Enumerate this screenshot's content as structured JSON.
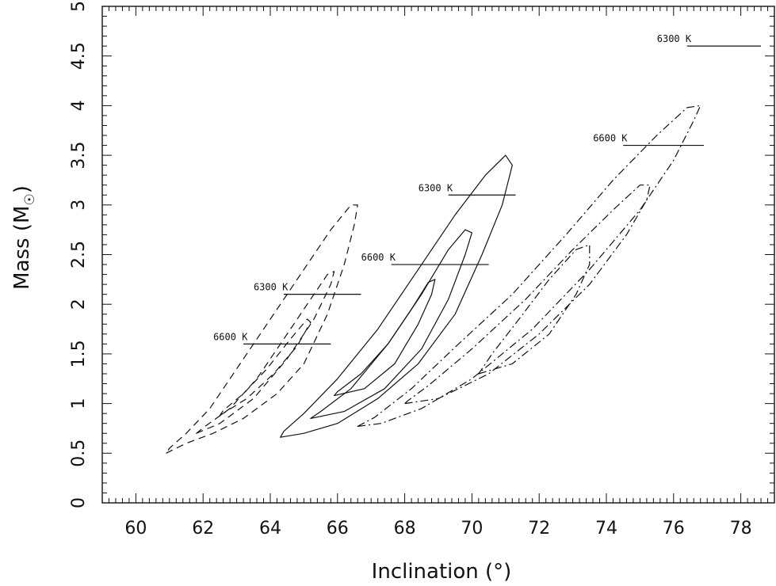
{
  "chart_data": {
    "type": "contour",
    "xlabel": "Inclination (°)",
    "ylabel": "Mass (M",
    "ylabel_unit_symbol": "☉",
    "ylabel_close": ")",
    "xlim": [
      59,
      79
    ],
    "ylim": [
      0,
      5
    ],
    "x_ticks": [
      60,
      62,
      64,
      66,
      68,
      70,
      72,
      74,
      76,
      78
    ],
    "x_tick_labels": [
      "60",
      "62",
      "64",
      "66",
      "68",
      "70",
      "72",
      "74",
      "76",
      "78"
    ],
    "y_ticks": [
      0,
      0.5,
      1,
      1.5,
      2,
      2.5,
      3,
      3.5,
      4,
      4.5,
      5
    ],
    "y_tick_labels": [
      "0",
      "0.5",
      "1",
      "1.5",
      "2",
      "2.5",
      "3",
      "3.5",
      "4",
      "4.5",
      "5"
    ],
    "grid": false,
    "contour_sets": [
      {
        "style": "dashed",
        "contours": [
          [
            [
              60.9,
              0.5
            ],
            [
              61.5,
              0.6
            ],
            [
              62.3,
              0.7
            ],
            [
              63.2,
              0.85
            ],
            [
              64.2,
              1.1
            ],
            [
              65.0,
              1.4
            ],
            [
              65.7,
              1.9
            ],
            [
              66.2,
              2.4
            ],
            [
              66.5,
              2.8
            ],
            [
              66.6,
              3.0
            ],
            [
              66.4,
              3.0
            ],
            [
              65.8,
              2.75
            ],
            [
              65.0,
              2.35
            ],
            [
              64.2,
              1.95
            ],
            [
              63.2,
              1.45
            ],
            [
              62.2,
              0.95
            ],
            [
              61.5,
              0.7
            ],
            [
              61.0,
              0.55
            ],
            [
              60.9,
              0.5
            ]
          ],
          [
            [
              61.8,
              0.7
            ],
            [
              62.5,
              0.8
            ],
            [
              63.5,
              1.05
            ],
            [
              64.5,
              1.45
            ],
            [
              65.3,
              1.85
            ],
            [
              65.8,
              2.2
            ],
            [
              65.9,
              2.33
            ],
            [
              65.7,
              2.3
            ],
            [
              65.1,
              2.0
            ],
            [
              64.4,
              1.65
            ],
            [
              63.6,
              1.25
            ],
            [
              62.8,
              0.95
            ],
            [
              62.1,
              0.78
            ],
            [
              61.8,
              0.7
            ]
          ],
          [
            [
              62.5,
              0.88
            ],
            [
              63.3,
              1.05
            ],
            [
              64.1,
              1.3
            ],
            [
              64.8,
              1.58
            ],
            [
              65.2,
              1.82
            ],
            [
              65.1,
              1.85
            ],
            [
              64.6,
              1.65
            ],
            [
              63.9,
              1.35
            ],
            [
              63.2,
              1.1
            ],
            [
              62.6,
              0.93
            ],
            [
              62.5,
              0.88
            ]
          ]
        ]
      },
      {
        "style": "solid",
        "contours": [
          [
            [
              64.3,
              0.66
            ],
            [
              65.0,
              0.7
            ],
            [
              66.0,
              0.8
            ],
            [
              67.2,
              1.05
            ],
            [
              68.4,
              1.4
            ],
            [
              69.5,
              1.9
            ],
            [
              70.3,
              2.5
            ],
            [
              70.9,
              3.0
            ],
            [
              71.2,
              3.4
            ],
            [
              71.0,
              3.5
            ],
            [
              70.4,
              3.3
            ],
            [
              69.5,
              2.9
            ],
            [
              68.4,
              2.35
            ],
            [
              67.2,
              1.75
            ],
            [
              66.0,
              1.25
            ],
            [
              65.0,
              0.9
            ],
            [
              64.4,
              0.72
            ],
            [
              64.3,
              0.66
            ]
          ],
          [
            [
              65.2,
              0.85
            ],
            [
              66.2,
              0.92
            ],
            [
              67.4,
              1.15
            ],
            [
              68.5,
              1.55
            ],
            [
              69.3,
              2.05
            ],
            [
              69.8,
              2.5
            ],
            [
              70.0,
              2.72
            ],
            [
              69.8,
              2.75
            ],
            [
              69.3,
              2.55
            ],
            [
              68.5,
              2.1
            ],
            [
              67.5,
              1.6
            ],
            [
              66.4,
              1.15
            ],
            [
              65.5,
              0.92
            ],
            [
              65.2,
              0.85
            ]
          ],
          [
            [
              65.9,
              1.08
            ],
            [
              66.8,
              1.15
            ],
            [
              67.7,
              1.4
            ],
            [
              68.4,
              1.8
            ],
            [
              68.8,
              2.1
            ],
            [
              68.9,
              2.25
            ],
            [
              68.7,
              2.22
            ],
            [
              68.2,
              1.95
            ],
            [
              67.5,
              1.6
            ],
            [
              66.7,
              1.3
            ],
            [
              66.0,
              1.12
            ],
            [
              65.9,
              1.08
            ]
          ]
        ]
      },
      {
        "style": "dashdot",
        "contours": [
          [
            [
              66.6,
              0.77
            ],
            [
              67.3,
              0.8
            ],
            [
              68.5,
              0.95
            ],
            [
              70.0,
              1.25
            ],
            [
              71.8,
              1.75
            ],
            [
              73.5,
              2.35
            ],
            [
              75.0,
              2.95
            ],
            [
              76.0,
              3.45
            ],
            [
              76.6,
              3.85
            ],
            [
              76.8,
              4.0
            ],
            [
              76.4,
              3.98
            ],
            [
              75.5,
              3.7
            ],
            [
              74.2,
              3.25
            ],
            [
              72.8,
              2.7
            ],
            [
              71.2,
              2.1
            ],
            [
              69.6,
              1.6
            ],
            [
              68.2,
              1.15
            ],
            [
              67.1,
              0.86
            ],
            [
              66.6,
              0.77
            ]
          ],
          [
            [
              68.0,
              1.0
            ],
            [
              69.0,
              1.05
            ],
            [
              70.5,
              1.3
            ],
            [
              72.0,
              1.7
            ],
            [
              73.5,
              2.2
            ],
            [
              74.6,
              2.7
            ],
            [
              75.2,
              3.05
            ],
            [
              75.3,
              3.2
            ],
            [
              75.0,
              3.2
            ],
            [
              74.2,
              2.95
            ],
            [
              73.0,
              2.55
            ],
            [
              71.6,
              2.05
            ],
            [
              70.0,
              1.55
            ],
            [
              68.7,
              1.18
            ],
            [
              68.1,
              1.03
            ],
            [
              68.0,
              1.0
            ]
          ],
          [
            [
              70.2,
              1.3
            ],
            [
              71.2,
              1.4
            ],
            [
              72.3,
              1.7
            ],
            [
              73.1,
              2.1
            ],
            [
              73.5,
              2.4
            ],
            [
              73.5,
              2.6
            ],
            [
              73.1,
              2.55
            ],
            [
              72.3,
              2.25
            ],
            [
              71.4,
              1.85
            ],
            [
              70.6,
              1.5
            ],
            [
              70.2,
              1.3
            ]
          ]
        ]
      }
    ],
    "reference_lines": [
      {
        "label": "6300 K",
        "x_start": 76.4,
        "x_end": 78.6,
        "y": 4.6
      },
      {
        "label": "6600 K",
        "x_start": 74.5,
        "x_end": 76.9,
        "y": 3.6
      },
      {
        "label": "6300 K",
        "x_start": 69.3,
        "x_end": 71.3,
        "y": 3.1
      },
      {
        "label": "6600 K",
        "x_start": 67.6,
        "x_end": 70.5,
        "y": 2.4
      },
      {
        "label": "6300 K",
        "x_start": 64.4,
        "x_end": 66.7,
        "y": 2.1
      },
      {
        "label": "6600 K",
        "x_start": 63.2,
        "x_end": 65.8,
        "y": 1.6
      }
    ]
  }
}
